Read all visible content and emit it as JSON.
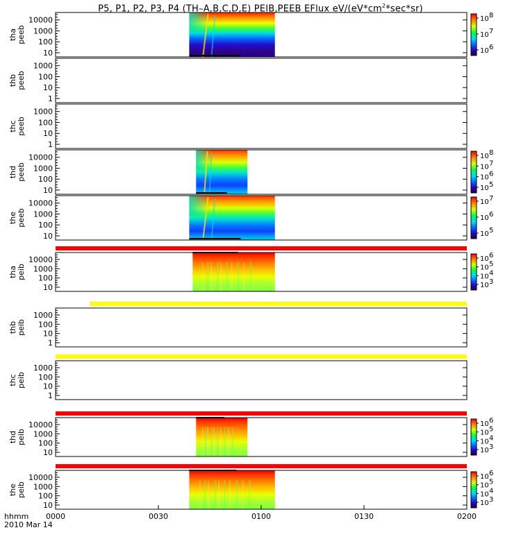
{
  "title_prefix": "P5, P1, P2, P3, P4 (TH–A,B,C,D,E) PEIB,PEEB EFlux eV/(eV*cm",
  "title_sup": "2",
  "title_suffix": "*sec*sr)",
  "colors": {
    "bar_red": "#ff0000",
    "bar_yellow": "#ffff00",
    "missing": "#ffffff"
  },
  "chart_data": {
    "type": "heatmap",
    "x_axis": {
      "range": [
        "0000",
        "0200"
      ],
      "ticks": [
        "0000",
        "0030",
        "0100",
        "0130",
        "0200"
      ],
      "label_top": "hhmm",
      "label_bottom": "2010 Mar 14"
    },
    "panels": [
      {
        "probe": "tha",
        "instrument": "peeb",
        "yticks": [
          "10",
          "100",
          "1000",
          "10000"
        ],
        "ylog": true,
        "data_window": [
          "0039",
          "0104"
        ],
        "low_energy": "dark-blue",
        "colorbar": {
          "ticks": [
            "10",
            "10",
            "10"
          ],
          "exponents": [
            "6",
            "7",
            "8"
          ]
        }
      },
      {
        "probe": "thb",
        "instrument": "peeb",
        "yticks": [
          "1",
          "10",
          "100",
          "1000"
        ],
        "ylog": true,
        "data_window": null
      },
      {
        "probe": "thc",
        "instrument": "peeb",
        "yticks": [
          "1",
          "10",
          "100",
          "1000"
        ],
        "ylog": true,
        "data_window": null
      },
      {
        "probe": "thd",
        "instrument": "peeb",
        "yticks": [
          "10",
          "100",
          "1000",
          "10000"
        ],
        "ylog": true,
        "data_window": [
          "0041",
          "0056"
        ],
        "low_energy": "blue",
        "colorbar": {
          "ticks": [
            "10",
            "10",
            "10",
            "10"
          ],
          "exponents": [
            "5",
            "6",
            "7",
            "8"
          ]
        }
      },
      {
        "probe": "the",
        "instrument": "peeb",
        "yticks": [
          "10",
          "100",
          "1000",
          "10000"
        ],
        "ylog": true,
        "data_window": [
          "0039",
          "0104"
        ],
        "low_energy": "blue",
        "colorbar": {
          "ticks": [
            "10",
            "10",
            "10"
          ],
          "exponents": [
            "5",
            "6",
            "7"
          ]
        }
      },
      {
        "probe": "tha",
        "instrument": "peib",
        "yticks": [
          "10",
          "100",
          "1000",
          "10000"
        ],
        "ylog": true,
        "data_window": [
          "0040",
          "0104"
        ],
        "flag_bar": "red",
        "flag_bar_window": [
          "0000",
          "0200"
        ],
        "colorbar": {
          "ticks": [
            "10",
            "10",
            "10",
            "10"
          ],
          "exponents": [
            "3",
            "4",
            "5",
            "6"
          ]
        }
      },
      {
        "probe": "thb",
        "instrument": "peib",
        "yticks": [
          "1",
          "10",
          "100",
          "1000"
        ],
        "ylog": true,
        "data_window": null,
        "flag_bar": "yellow",
        "flag_bar_window": [
          "0010",
          "0200"
        ]
      },
      {
        "probe": "thc",
        "instrument": "peib",
        "yticks": [
          "1",
          "10",
          "100",
          "1000"
        ],
        "ylog": true,
        "data_window": null,
        "flag_bar": "yellow",
        "flag_bar_window": [
          "0000",
          "0200"
        ]
      },
      {
        "probe": "thd",
        "instrument": "peib",
        "yticks": [
          "10",
          "100",
          "1000",
          "10000"
        ],
        "ylog": true,
        "data_window": [
          "0041",
          "0056"
        ],
        "flag_bar": "red",
        "flag_bar_window": [
          "0000",
          "0200"
        ],
        "colorbar": {
          "ticks": [
            "10",
            "10",
            "10",
            "10"
          ],
          "exponents": [
            "3",
            "4",
            "5",
            "6"
          ]
        }
      },
      {
        "probe": "the",
        "instrument": "peib",
        "yticks": [
          "10",
          "100",
          "1000",
          "10000"
        ],
        "ylog": true,
        "data_window": [
          "0039",
          "0104"
        ],
        "flag_bar": "red",
        "flag_bar_window": [
          "0000",
          "0200"
        ],
        "colorbar": {
          "ticks": [
            "10",
            "10",
            "10",
            "10"
          ],
          "exponents": [
            "3",
            "4",
            "5",
            "6"
          ]
        }
      }
    ]
  }
}
